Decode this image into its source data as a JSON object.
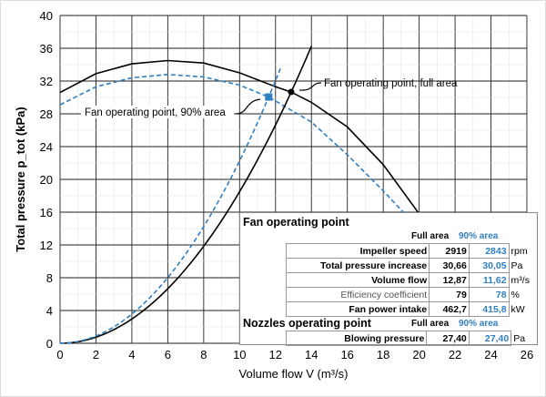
{
  "chart_data": {
    "type": "line",
    "xlabel": "Volume flow V (m³/s)",
    "ylabel": "Total pressure p_tot (kPa)",
    "xlim": [
      0,
      26
    ],
    "ylim": [
      0,
      40
    ],
    "xticks": [
      0,
      2,
      4,
      6,
      8,
      10,
      12,
      14,
      16,
      18,
      20,
      22,
      24,
      26
    ],
    "yticks": [
      0,
      4,
      8,
      12,
      16,
      20,
      24,
      28,
      32,
      36,
      40
    ],
    "grid": true,
    "series": [
      {
        "style": "solid",
        "color": "#000000",
        "points": [
          [
            0,
            30.6
          ],
          [
            2,
            32.9
          ],
          [
            4,
            34.1
          ],
          [
            6,
            34.5
          ],
          [
            8,
            34.2
          ],
          [
            10,
            33.0
          ],
          [
            12,
            31.3
          ],
          [
            12.87,
            30.66
          ],
          [
            14,
            29.4
          ],
          [
            16,
            26.4
          ],
          [
            18,
            21.8
          ],
          [
            20,
            15.8
          ]
        ]
      },
      {
        "style": "dashed",
        "color": "#2f7fc1",
        "points": [
          [
            0,
            29.1
          ],
          [
            2,
            31.3
          ],
          [
            4,
            32.4
          ],
          [
            6,
            32.8
          ],
          [
            8,
            32.5
          ],
          [
            10,
            31.5
          ],
          [
            11.62,
            30.05
          ],
          [
            14,
            27
          ],
          [
            16,
            23
          ],
          [
            18,
            18.6
          ],
          [
            19.2,
            15.8
          ]
        ]
      },
      {
        "style": "solid",
        "color": "#000000",
        "coef": 0.185,
        "xmax": 14
      },
      {
        "style": "dashed",
        "color": "#2f7fc1",
        "coef": 0.2226,
        "xmax": 12.3
      }
    ],
    "markers": [
      {
        "x": 12.87,
        "y": 30.66,
        "shape": "circle",
        "color": "#000000"
      },
      {
        "x": 11.62,
        "y": 30.05,
        "shape": "square",
        "color": "#2f7fc1"
      }
    ],
    "annotations": [
      "Fan operating point, full area",
      "Fan operating point, 90% area"
    ]
  },
  "table": {
    "fan_title": "Fan operating point",
    "nozzle_title": "Nozzles operating point",
    "col_full": "Full area",
    "col_90": "90% area",
    "rows": [
      {
        "label": "Impeller speed",
        "full": "2919",
        "p90": "2843",
        "unit": "rpm"
      },
      {
        "label": "Total pressure increase",
        "full": "30,66",
        "p90": "30,05",
        "unit": "Pa"
      },
      {
        "label": "Volume flow",
        "full": "12,87",
        "p90": "11,62",
        "unit": "m³/s"
      },
      {
        "label": "Efficiency coefficient",
        "full": "79",
        "p90": "78",
        "unit": "%"
      },
      {
        "label": "Fan power intake",
        "full": "462,7",
        "p90": "415,8",
        "unit": "kW"
      }
    ],
    "nozzle_row": {
      "label": "Blowing pressure",
      "full": "27,40",
      "p90": "27,40",
      "unit": "Pa"
    }
  }
}
